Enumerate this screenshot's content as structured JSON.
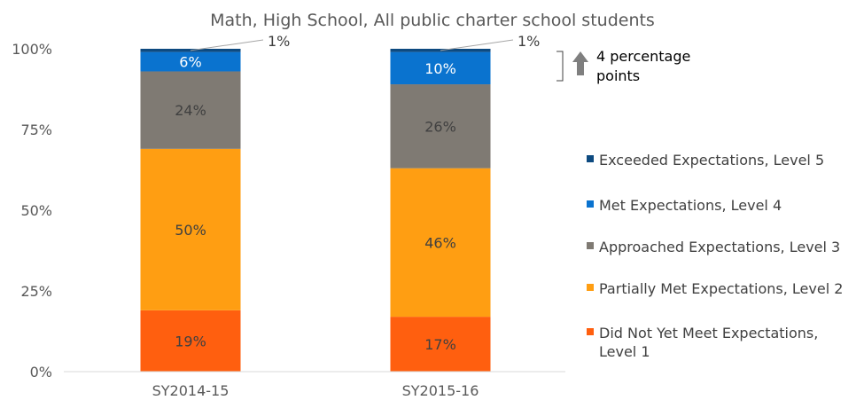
{
  "chart_data": {
    "type": "bar",
    "stacked": true,
    "title": "Math, High School, All public charter school students",
    "categories": [
      "SY2014-15",
      "SY2015-16"
    ],
    "y_ticks": [
      "0%",
      "25%",
      "50%",
      "75%",
      "100%"
    ],
    "ylim": [
      0,
      100
    ],
    "grid": false,
    "legend_position": "right",
    "series": [
      {
        "name": "Did Not Yet Meet Expectations, Level 1",
        "values": [
          19,
          17
        ],
        "labels": [
          "19%",
          "17%"
        ],
        "color": "#FF5F0F"
      },
      {
        "name": "Partially Met Expectations, Level 2",
        "values": [
          50,
          46
        ],
        "labels": [
          "50%",
          "46%"
        ],
        "color": "#FF9E12"
      },
      {
        "name": "Approached Expectations, Level 3",
        "values": [
          24,
          26
        ],
        "labels": [
          "24%",
          "26%"
        ],
        "color": "#7F7A73"
      },
      {
        "name": "Met Expectations, Level 4",
        "values": [
          6,
          10
        ],
        "labels": [
          "6%",
          "10%"
        ],
        "color": "#0A73CF"
      },
      {
        "name": "Exceeded Expectations, Level 5",
        "values": [
          1,
          1
        ],
        "labels": [
          "1%",
          "1%"
        ],
        "color": "#0D4A80"
      }
    ],
    "legend_order": [
      4,
      3,
      2,
      1,
      0
    ],
    "annotation": {
      "line1": "4 percentage",
      "line2": "points",
      "arrow": "up-arrow-icon",
      "arrow_color": "#7F7F7F"
    }
  }
}
